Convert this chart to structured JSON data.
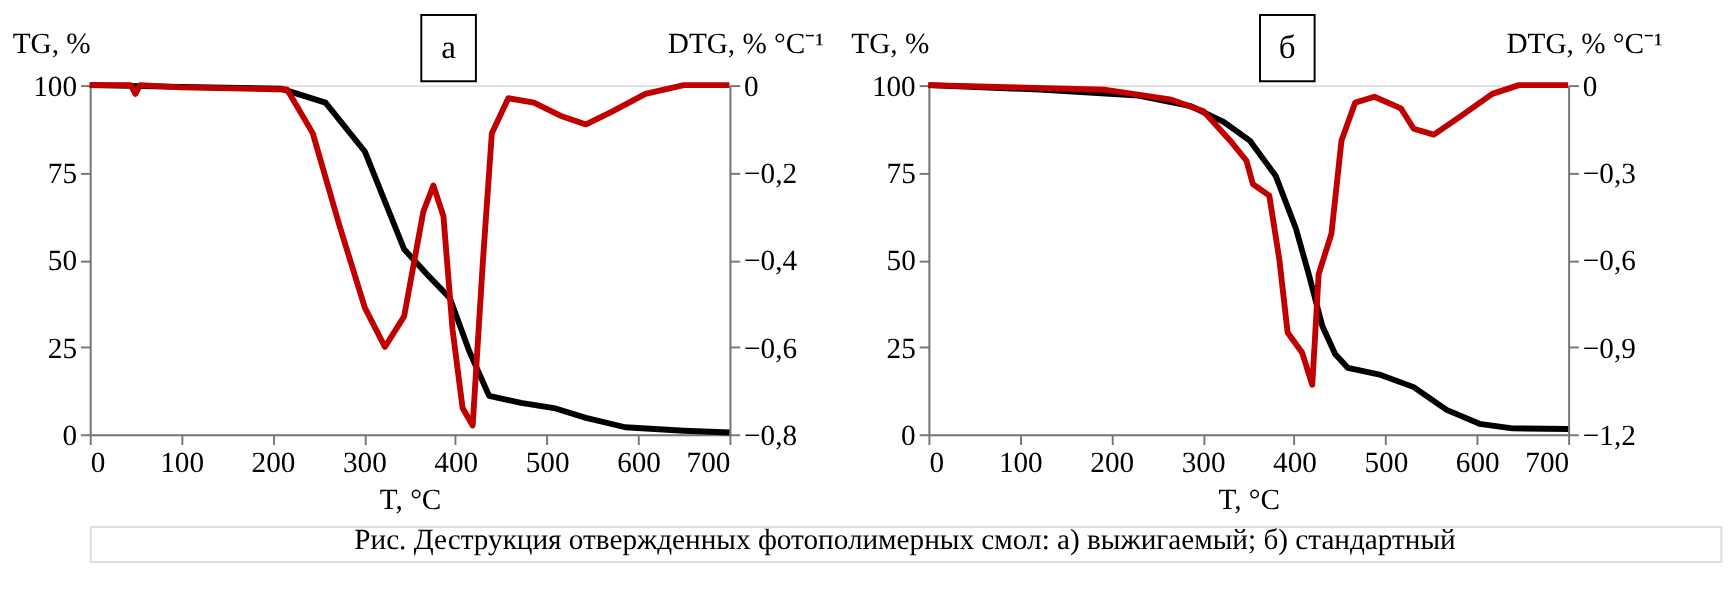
{
  "chart_data": [
    {
      "type": "line",
      "xlabel": "T, °C",
      "ylabel": "TG, %",
      "y2label": "DTG, % °C⁻¹",
      "annotations": [
        "а",
        "Рис. Деструкция отвержденных фотополимерных смол: а) выжигаемый; б) стандартный"
      ],
      "xlim": [
        0,
        700
      ],
      "xticks": [
        0,
        100,
        200,
        300,
        400,
        500,
        600,
        700
      ],
      "ylim": [
        0,
        100
      ],
      "yticks": [
        0,
        25,
        50,
        75,
        100
      ],
      "y2lim": [
        -0.8,
        0
      ],
      "y2ticks": [
        {
          "value": -0.8,
          "label": "−0,8"
        },
        {
          "value": -0.6,
          "label": "−0,6"
        },
        {
          "value": -0.4,
          "label": "−0,4"
        },
        {
          "value": -0.2,
          "label": "−0,2"
        },
        0
      ],
      "grid": false,
      "marker": "none",
      "line_style": "solid",
      "series": [
        {
          "color": "#000000",
          "x": [
            0,
            100,
            209,
            258,
            301,
            344,
            372,
            394,
            415,
            437,
            472,
            508,
            543,
            586,
            650,
            700
          ],
          "values": [
            100,
            99.5,
            99,
            95,
            81,
            53,
            45,
            39,
            24,
            11,
            9,
            7.5,
            4.7,
            2,
            1,
            0.5
          ]
        },
        {
          "color": "#c00000",
          "axis": "y2",
          "x": [
            0,
            45,
            50,
            55,
            100,
            216,
            244,
            273,
            301,
            323,
            344,
            365,
            376,
            387,
            397,
            408,
            419,
            430,
            440,
            458,
            486,
            515,
            543,
            572,
            608,
            650,
            700
          ],
          "values": [
            0,
            0,
            -0.02,
            0,
            -0.005,
            -0.01,
            -0.11,
            -0.32,
            -0.51,
            -0.6,
            -0.53,
            -0.29,
            -0.23,
            -0.3,
            -0.56,
            -0.74,
            -0.78,
            -0.41,
            -0.11,
            -0.03,
            -0.04,
            -0.07,
            -0.09,
            -0.06,
            -0.02,
            0,
            0
          ]
        }
      ]
    },
    {
      "type": "line",
      "xlabel": "T, °C",
      "ylabel": "TG, %",
      "y2label": "DTG, % °C⁻¹",
      "annotations": [
        "б"
      ],
      "xlim": [
        0,
        700
      ],
      "xticks": [
        0,
        100,
        200,
        300,
        400,
        500,
        600,
        700
      ],
      "ylim": [
        0,
        100
      ],
      "yticks": [
        0,
        25,
        50,
        75,
        100
      ],
      "y2lim": [
        -1.2,
        0
      ],
      "y2ticks": [
        {
          "value": -1.2,
          "label": "−1,2"
        },
        {
          "value": -0.9,
          "label": "−0,9"
        },
        {
          "value": -0.6,
          "label": "−0,6"
        },
        {
          "value": -0.3,
          "label": "−0,3"
        },
        0
      ],
      "grid": false,
      "marker": "none",
      "line_style": "solid",
      "series": [
        {
          "color": "#000000",
          "x": [
            0,
            122,
            230,
            287,
            323,
            352,
            380,
            402,
            416,
            431,
            445,
            459,
            495,
            531,
            567,
            603,
            639,
            700
          ],
          "values": [
            100,
            98.7,
            97,
            94,
            89.5,
            84,
            74,
            59,
            46,
            31,
            23,
            19,
            17,
            13.5,
            7,
            3,
            1.7,
            1.5
          ]
        },
        {
          "color": "#c00000",
          "axis": "y2",
          "x": [
            0,
            194,
            266,
            301,
            330,
            348,
            355,
            373,
            384,
            393,
            409,
            420,
            427,
            441,
            452,
            467,
            488,
            517,
            531,
            553,
            581,
            617,
            646,
            700
          ],
          "values": [
            0,
            -0.016,
            -0.05,
            -0.09,
            -0.19,
            -0.26,
            -0.34,
            -0.38,
            -0.6,
            -0.85,
            -0.92,
            -1.03,
            -0.65,
            -0.51,
            -0.19,
            -0.06,
            -0.04,
            -0.08,
            -0.15,
            -0.17,
            -0.11,
            -0.03,
            0,
            0
          ]
        }
      ]
    }
  ]
}
